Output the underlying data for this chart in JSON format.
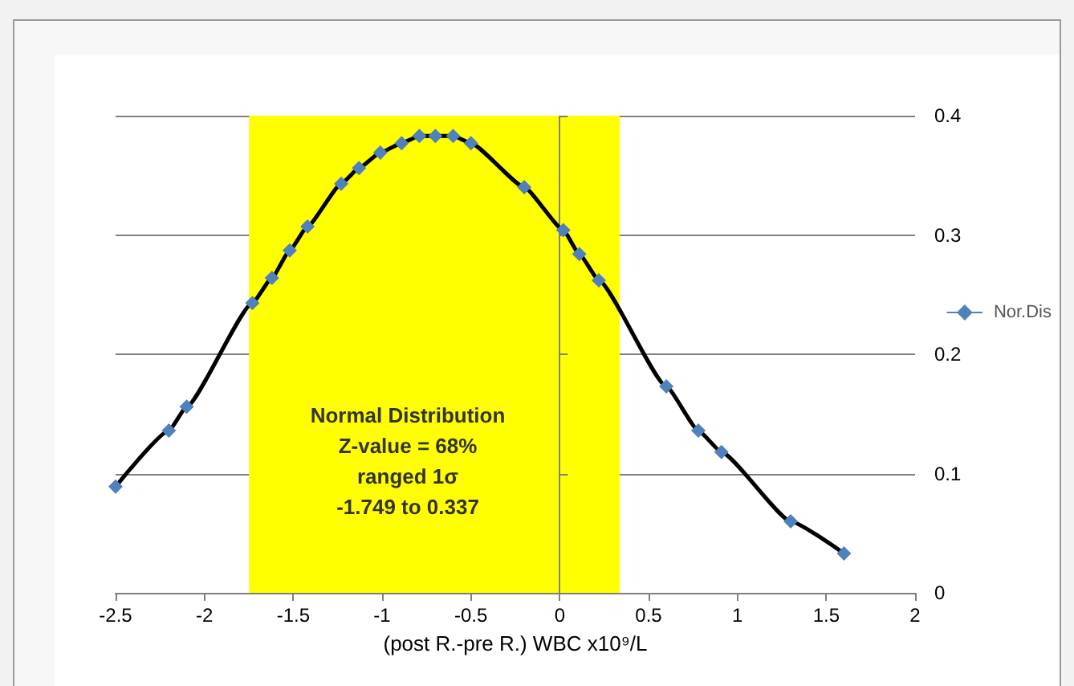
{
  "chart_data": {
    "type": "line",
    "xlabel": "(post R.-pre R.) WBC x10⁹/L",
    "x": [
      -2.5,
      -2.2,
      -2.1,
      -1.73,
      -1.62,
      -1.52,
      -1.42,
      -1.23,
      -1.13,
      -1.01,
      -0.89,
      -0.79,
      -0.7,
      -0.6,
      -0.5,
      -0.2,
      0.02,
      0.11,
      0.22,
      0.6,
      0.78,
      0.91,
      1.3,
      1.6
    ],
    "series": [
      {
        "name": "Nor.Dis",
        "color": "#4f81bd",
        "values": [
          0.089,
          0.136,
          0.156,
          0.243,
          0.264,
          0.287,
          0.307,
          0.343,
          0.356,
          0.369,
          0.377,
          0.383,
          0.383,
          0.383,
          0.377,
          0.34,
          0.304,
          0.284,
          0.262,
          0.173,
          0.136,
          0.118,
          0.06,
          0.033
        ]
      }
    ],
    "xlim": [
      -2.5,
      2
    ],
    "xticks": [
      -2.5,
      -2,
      -1.5,
      -1,
      -0.5,
      0,
      0.5,
      1,
      1.5,
      2
    ],
    "ylim": [
      0,
      0.4
    ],
    "yticks": [
      0,
      0.1,
      0.2,
      0.3,
      0.4
    ],
    "grid": "y",
    "legend": "right",
    "marker": "diamond",
    "line_style": "solid",
    "bands": [
      {
        "axis": "x",
        "from": -1.749,
        "to": 0.337,
        "color": "#ffff00"
      }
    ],
    "ref_lines": [
      {
        "axis": "x",
        "value": 0,
        "color": "#808080"
      }
    ],
    "annotations": [
      "Normal Distribution\nZ-value = 68%\nranged 1σ\n-1.749 to 0.337"
    ]
  }
}
